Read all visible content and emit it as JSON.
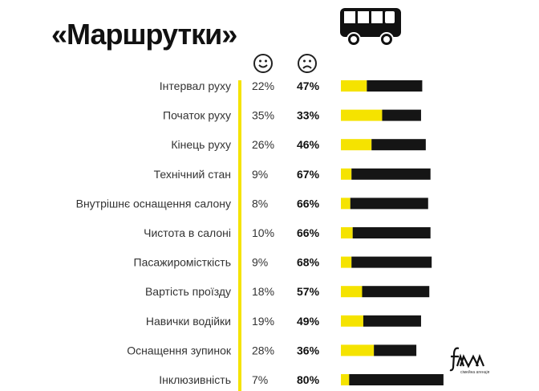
{
  "title": "«Маршрутки»",
  "logo": {
    "text": "fama",
    "subtitle": "сімейна агенція"
  },
  "icons": {
    "header": "bus-icon",
    "positive": "happy-face-icon",
    "negative": "sad-face-icon"
  },
  "colors": {
    "positive": "#f5e300",
    "negative": "#151515"
  },
  "chart_data": {
    "type": "bar",
    "stacked": true,
    "categories": [
      "Інтервал руху",
      "Початок руху",
      "Кінець руху",
      "Технічний стан",
      "Внутрішнє оснащення салону",
      "Чистота в салоні",
      "Пасажиромісткість",
      "Вартість проїзду",
      "Навички водійки",
      "Оснащення зупинок",
      "Інклюзивність"
    ],
    "series": [
      {
        "name": "positive",
        "values": [
          22,
          35,
          26,
          9,
          8,
          10,
          9,
          18,
          19,
          28,
          7
        ],
        "labels": [
          "22%",
          "35%",
          "26%",
          "9%",
          "8%",
          "10%",
          "9%",
          "18%",
          "19%",
          "28%",
          "7%"
        ]
      },
      {
        "name": "negative",
        "values": [
          47,
          33,
          46,
          67,
          66,
          66,
          68,
          57,
          49,
          36,
          80
        ],
        "labels": [
          "47%",
          "33%",
          "46%",
          "67%",
          "66%",
          "66%",
          "68%",
          "57%",
          "49%",
          "36%",
          "80%"
        ]
      }
    ]
  }
}
